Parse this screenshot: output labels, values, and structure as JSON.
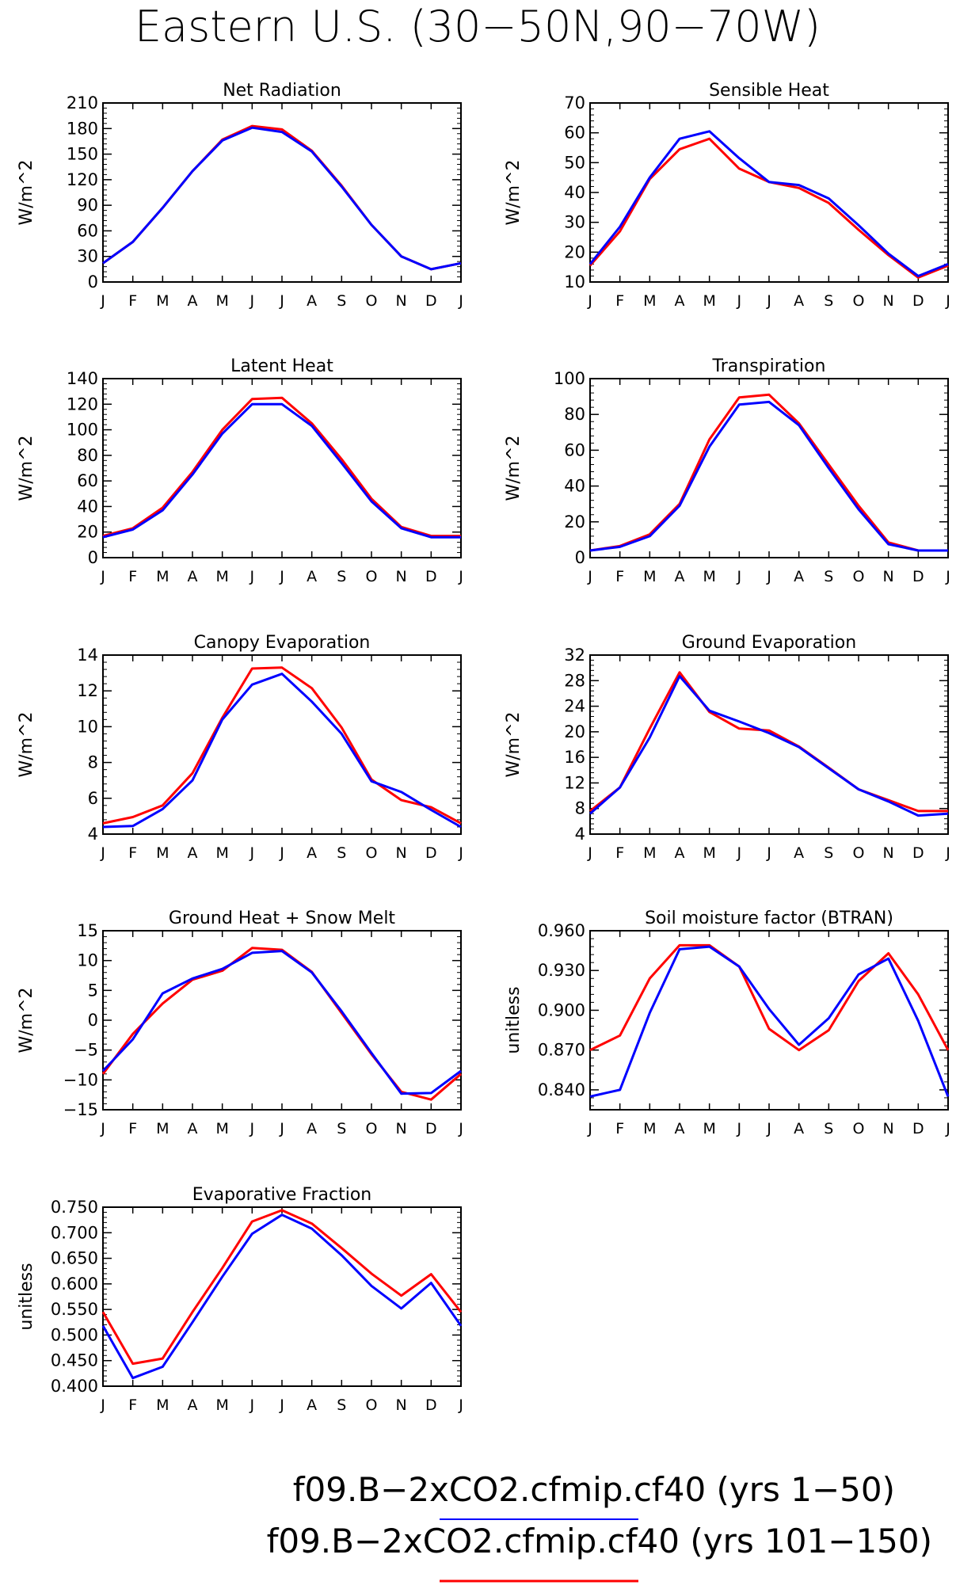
{
  "figure_title": "Eastern U.S. (30−50N,90−70W)",
  "months": [
    "J",
    "F",
    "M",
    "A",
    "M",
    "J",
    "J",
    "A",
    "S",
    "O",
    "N",
    "D",
    "J"
  ],
  "legend": [
    {
      "text": "f09.B−2xCO2.cfmip.cf40 (yrs 1−50)",
      "color": "#0000ff"
    },
    {
      "text": "f09.B−2xCO2.cfmip.cf40 (yrs 101−150)",
      "color": "#ff0000"
    }
  ],
  "series_colors": {
    "blue": "#0000ff",
    "red": "#ff0000"
  },
  "chart_data": [
    {
      "type": "line",
      "title": "Net Radiation",
      "ylabel": "W/m^2",
      "ylim": [
        0,
        210
      ],
      "yticks": [
        0,
        30,
        60,
        90,
        120,
        150,
        180,
        210
      ],
      "ytick_labels": [
        "0",
        "30",
        "60",
        "90",
        "120",
        "150",
        "180",
        "210"
      ],
      "series": [
        {
          "color": "blue",
          "values": [
            22,
            47,
            87,
            130,
            166,
            181,
            176,
            153,
            112,
            67,
            30,
            15,
            22
          ]
        },
        {
          "color": "red",
          "values": [
            22,
            47,
            87,
            130,
            167,
            183,
            179,
            154,
            113,
            67,
            30,
            15,
            22
          ]
        }
      ]
    },
    {
      "type": "line",
      "title": "Sensible Heat",
      "ylabel": "W/m^2",
      "ylim": [
        10,
        70
      ],
      "yticks": [
        10,
        20,
        30,
        40,
        50,
        60,
        70
      ],
      "ytick_labels": [
        "10",
        "20",
        "30",
        "40",
        "50",
        "60",
        "70"
      ],
      "series": [
        {
          "color": "blue",
          "values": [
            16,
            28.5,
            45,
            58,
            60.5,
            51.5,
            43.5,
            42.5,
            38,
            29,
            19.5,
            12,
            16
          ]
        },
        {
          "color": "red",
          "values": [
            15.5,
            27,
            44.5,
            54.5,
            58,
            48,
            43.5,
            41.5,
            36.5,
            27.5,
            19,
            11.5,
            15.5
          ]
        }
      ]
    },
    {
      "type": "line",
      "title": "Latent Heat",
      "ylabel": "W/m^2",
      "ylim": [
        0,
        140
      ],
      "yticks": [
        0,
        20,
        40,
        60,
        80,
        100,
        120,
        140
      ],
      "ytick_labels": [
        "0",
        "20",
        "40",
        "60",
        "80",
        "100",
        "120",
        "140"
      ],
      "series": [
        {
          "color": "blue",
          "values": [
            16,
            22,
            37,
            65,
            97,
            120,
            120,
            103,
            74,
            44,
            23,
            16,
            16
          ]
        },
        {
          "color": "red",
          "values": [
            17,
            23,
            39,
            67,
            100,
            124,
            125,
            105,
            77,
            46,
            24,
            17,
            17
          ]
        }
      ]
    },
    {
      "type": "line",
      "title": "Transpiration",
      "ylabel": "W/m^2",
      "ylim": [
        0,
        100
      ],
      "yticks": [
        0,
        20,
        40,
        60,
        80,
        100
      ],
      "ytick_labels": [
        "0",
        "20",
        "40",
        "60",
        "80",
        "100"
      ],
      "series": [
        {
          "color": "blue",
          "values": [
            4,
            6,
            12,
            29,
            62,
            85.5,
            87,
            74,
            50,
            27,
            7.5,
            4,
            4
          ]
        },
        {
          "color": "red",
          "values": [
            4,
            6.5,
            13,
            30,
            66,
            89.5,
            91,
            75,
            52,
            29,
            8.5,
            4,
            4
          ]
        }
      ]
    },
    {
      "type": "line",
      "title": "Canopy Evaporation",
      "ylabel": "W/m^2",
      "ylim": [
        4,
        14
      ],
      "yticks": [
        4,
        6,
        8,
        10,
        12,
        14
      ],
      "ytick_labels": [
        "4",
        "6",
        "8",
        "10",
        "12",
        "14"
      ],
      "series": [
        {
          "color": "blue",
          "values": [
            4.4,
            4.45,
            5.4,
            7.0,
            10.4,
            12.35,
            12.95,
            11.4,
            9.6,
            6.95,
            6.35,
            5.35,
            4.4
          ]
        },
        {
          "color": "red",
          "values": [
            4.6,
            4.95,
            5.6,
            7.4,
            10.5,
            13.25,
            13.3,
            12.15,
            9.95,
            7.05,
            5.9,
            5.5,
            4.6
          ]
        }
      ]
    },
    {
      "type": "line",
      "title": "Ground Evaporation",
      "ylabel": "W/m^2",
      "ylim": [
        4,
        32
      ],
      "yticks": [
        4,
        8,
        12,
        16,
        20,
        24,
        28,
        32
      ],
      "ytick_labels": [
        "4",
        "8",
        "12",
        "16",
        "20",
        "24",
        "28",
        "32"
      ],
      "series": [
        {
          "color": "blue",
          "values": [
            7.2,
            11.3,
            19.1,
            28.7,
            23.3,
            21.6,
            19.8,
            17.6,
            14.3,
            11.0,
            9.1,
            6.9,
            7.2
          ]
        },
        {
          "color": "red",
          "values": [
            7.6,
            11.3,
            20.5,
            29.3,
            23.1,
            20.5,
            20.2,
            17.7,
            14.4,
            11.0,
            9.3,
            7.6,
            7.6
          ]
        }
      ]
    },
    {
      "type": "line",
      "title": "Ground Heat + Snow Melt",
      "ylabel": "W/m^2",
      "ylim": [
        -15,
        15
      ],
      "yticks": [
        -15,
        -10,
        -5,
        0,
        5,
        10,
        15
      ],
      "ytick_labels": [
        "−15",
        "−10",
        "−5",
        "0",
        "5",
        "10",
        "15"
      ],
      "series": [
        {
          "color": "blue",
          "values": [
            -8.5,
            -3.2,
            4.5,
            7.0,
            8.6,
            11.3,
            11.6,
            8.0,
            1.5,
            -5.5,
            -12.3,
            -12.2,
            -8.5
          ]
        },
        {
          "color": "red",
          "values": [
            -9.0,
            -2.3,
            2.8,
            6.8,
            8.3,
            12.1,
            11.8,
            8.1,
            1.2,
            -5.7,
            -12.0,
            -13.3,
            -9.0
          ]
        }
      ]
    },
    {
      "type": "line",
      "title": "Soil moisture factor (BTRAN)",
      "ylabel": "unitless",
      "ylim": [
        0.825,
        0.96
      ],
      "yticks": [
        0.84,
        0.87,
        0.9,
        0.93,
        0.96
      ],
      "ytick_labels": [
        "0.840",
        "0.870",
        "0.900",
        "0.930",
        "0.960"
      ],
      "series": [
        {
          "color": "blue",
          "values": [
            0.835,
            0.84,
            0.898,
            0.946,
            0.948,
            0.933,
            0.901,
            0.874,
            0.894,
            0.927,
            0.939,
            0.892,
            0.835
          ]
        },
        {
          "color": "red",
          "values": [
            0.87,
            0.881,
            0.924,
            0.949,
            0.949,
            0.933,
            0.886,
            0.87,
            0.885,
            0.922,
            0.943,
            0.912,
            0.87
          ]
        }
      ]
    },
    {
      "type": "line",
      "title": "Evaporative Fraction",
      "ylabel": "unitless",
      "ylim": [
        0.4,
        0.75
      ],
      "yticks": [
        0.4,
        0.45,
        0.5,
        0.55,
        0.6,
        0.65,
        0.7,
        0.75
      ],
      "ytick_labels": [
        "0.400",
        "0.450",
        "0.500",
        "0.550",
        "0.600",
        "0.650",
        "0.700",
        "0.750"
      ],
      "series": [
        {
          "color": "blue",
          "values": [
            0.518,
            0.416,
            0.438,
            0.525,
            0.614,
            0.698,
            0.735,
            0.708,
            0.656,
            0.596,
            0.552,
            0.602,
            0.518
          ]
        },
        {
          "color": "red",
          "values": [
            0.545,
            0.444,
            0.454,
            0.545,
            0.631,
            0.722,
            0.744,
            0.718,
            0.67,
            0.62,
            0.577,
            0.619,
            0.545
          ]
        }
      ]
    }
  ]
}
